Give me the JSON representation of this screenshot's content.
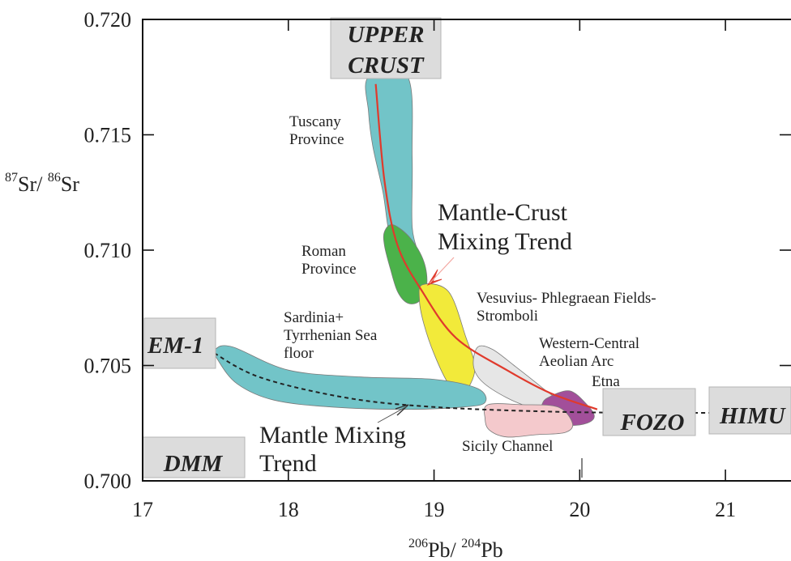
{
  "chart_data": {
    "type": "scatter",
    "title": "",
    "xlabel": {
      "sup1": "206",
      "base1": "Pb/",
      "sup2": "204",
      "base2": "Pb"
    },
    "ylabel": {
      "sup1": "87",
      "base1": "Sr/",
      "sup2": "86",
      "base2": "Sr"
    },
    "xlim": [
      17,
      21.45
    ],
    "ylim": [
      0.7,
      0.72
    ],
    "x_ticks": [
      "17",
      "18",
      "19",
      "20",
      "21"
    ],
    "y_ticks": [
      "0.700",
      "0.705",
      "0.710",
      "0.715",
      "0.720"
    ],
    "grid": false,
    "fields": [
      {
        "name": "Tuscany Province",
        "label_lines": [
          "Tuscany",
          "Province"
        ],
        "color": "#72c4c8",
        "outline": [
          [
            18.55,
            0.7175
          ],
          [
            18.82,
            0.7175
          ],
          [
            18.85,
            0.714
          ],
          [
            18.85,
            0.711
          ],
          [
            18.9,
            0.7095
          ],
          [
            18.8,
            0.709
          ],
          [
            18.7,
            0.7105
          ],
          [
            18.65,
            0.7125
          ],
          [
            18.58,
            0.7145
          ],
          [
            18.55,
            0.716
          ]
        ]
      },
      {
        "name": "Roman Province",
        "label_lines": [
          "Roman",
          "Province"
        ],
        "color": "#4bb24a",
        "outline": [
          [
            18.66,
            0.7108
          ],
          [
            18.72,
            0.7111
          ],
          [
            18.84,
            0.7105
          ],
          [
            18.93,
            0.7095
          ],
          [
            18.95,
            0.7085
          ],
          [
            18.9,
            0.7078
          ],
          [
            18.82,
            0.7077
          ],
          [
            18.75,
            0.7082
          ],
          [
            18.7,
            0.7092
          ],
          [
            18.66,
            0.7102
          ]
        ]
      },
      {
        "name": "Vesuvius- Phlegraean Fields- Stromboli",
        "label_lines": [
          "Vesuvius- Phlegraean Fields-",
          "Stromboli"
        ],
        "color": "#f2ea3a",
        "outline": [
          [
            18.92,
            0.7085
          ],
          [
            19.1,
            0.7082
          ],
          [
            19.22,
            0.7062
          ],
          [
            19.28,
            0.705
          ],
          [
            19.25,
            0.7042
          ],
          [
            19.18,
            0.7038
          ],
          [
            19.1,
            0.7042
          ],
          [
            19.0,
            0.7055
          ],
          [
            18.93,
            0.7068
          ],
          [
            18.9,
            0.7078
          ]
        ]
      },
      {
        "name": "Western-Central Aeolian Arc",
        "label_lines": [
          "Western-Central",
          "Aeolian Arc"
        ],
        "color": "#e6e6e6",
        "outline": [
          [
            19.3,
            0.7058
          ],
          [
            19.4,
            0.7057
          ],
          [
            19.55,
            0.705
          ],
          [
            19.75,
            0.704
          ],
          [
            19.88,
            0.7033
          ],
          [
            19.82,
            0.703
          ],
          [
            19.7,
            0.7031
          ],
          [
            19.5,
            0.7036
          ],
          [
            19.33,
            0.7043
          ],
          [
            19.27,
            0.705
          ]
        ]
      },
      {
        "name": "Etna",
        "label_lines": [
          "Etna"
        ],
        "color": "#a24f9a",
        "outline": [
          [
            19.78,
            0.7036
          ],
          [
            19.93,
            0.7039
          ],
          [
            20.05,
            0.7033
          ],
          [
            20.1,
            0.7028
          ],
          [
            20.05,
            0.7025
          ],
          [
            19.93,
            0.7024
          ],
          [
            19.8,
            0.7025
          ],
          [
            19.73,
            0.703
          ],
          [
            19.74,
            0.7033
          ]
        ]
      },
      {
        "name": "Sicily Channel",
        "label_lines": [
          "Sicily Channel"
        ],
        "color": "#f4c9cc",
        "outline": [
          [
            19.37,
            0.7033
          ],
          [
            19.6,
            0.7033
          ],
          [
            19.85,
            0.7032
          ],
          [
            19.95,
            0.7025
          ],
          [
            19.9,
            0.7021
          ],
          [
            19.7,
            0.702
          ],
          [
            19.5,
            0.7019
          ],
          [
            19.38,
            0.7022
          ],
          [
            19.35,
            0.7027
          ]
        ]
      },
      {
        "name": "Sardinia+ Tyrrhenian Sea floor",
        "label_lines": [
          "Sardinia+",
          "Tyrrhenian Sea",
          "floor"
        ],
        "color": "#72c4c8",
        "outline": [
          [
            17.5,
            0.7057
          ],
          [
            17.62,
            0.7058
          ],
          [
            18.0,
            0.7048
          ],
          [
            18.5,
            0.7045
          ],
          [
            19.0,
            0.7044
          ],
          [
            19.3,
            0.704
          ],
          [
            19.35,
            0.7034
          ],
          [
            19.2,
            0.7032
          ],
          [
            18.8,
            0.7031
          ],
          [
            18.3,
            0.7032
          ],
          [
            17.9,
            0.7035
          ],
          [
            17.65,
            0.7042
          ],
          [
            17.52,
            0.7052
          ]
        ]
      }
    ],
    "end_members": [
      {
        "name": "UPPER CRUST",
        "label_lines": [
          "UPPER",
          "CRUST"
        ]
      },
      {
        "name": "EM-1",
        "label_lines": [
          "EM-1"
        ]
      },
      {
        "name": "DMM",
        "label_lines": [
          "DMM"
        ]
      },
      {
        "name": "FOZO",
        "label_lines": [
          "FOZO"
        ]
      },
      {
        "name": "HIMU",
        "label_lines": [
          "HIMU"
        ]
      }
    ],
    "trends": [
      {
        "name": "Mantle-Crust Mixing Trend",
        "label_lines": [
          "Mantle-Crust",
          "Mixing Trend"
        ],
        "color": "#e03a2c",
        "style": "solid",
        "points": [
          [
            18.6,
            0.7172
          ],
          [
            18.66,
            0.713
          ],
          [
            18.75,
            0.7102
          ],
          [
            18.92,
            0.7082
          ],
          [
            19.15,
            0.7062
          ],
          [
            19.5,
            0.7048
          ],
          [
            19.8,
            0.7038
          ],
          [
            20.12,
            0.7031
          ]
        ]
      },
      {
        "name": "Mantle Mixing Trend",
        "label_lines": [
          "Mantle Mixing",
          "Trend"
        ],
        "color": "#222222",
        "style": "dashed",
        "points": [
          [
            17.45,
            0.7057
          ],
          [
            17.8,
            0.7045
          ],
          [
            18.4,
            0.7036
          ],
          [
            19.0,
            0.7032
          ],
          [
            19.8,
            0.703
          ],
          [
            20.5,
            0.70295
          ],
          [
            21.4,
            0.70295
          ]
        ]
      }
    ]
  }
}
